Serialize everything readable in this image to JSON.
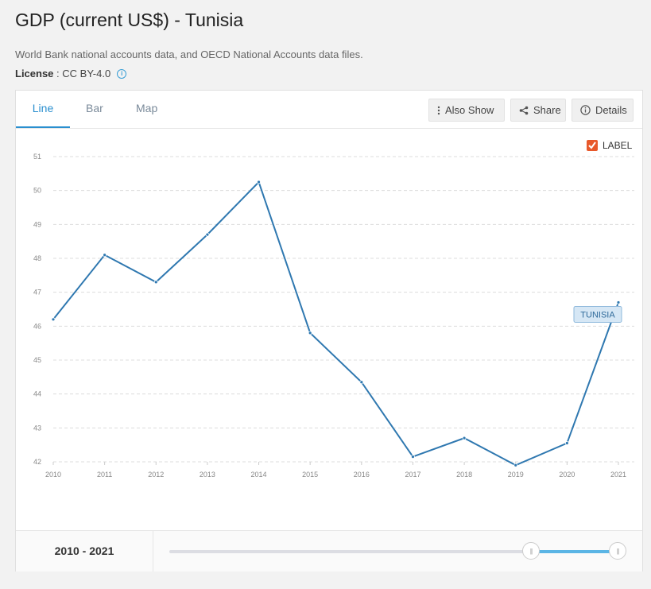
{
  "page": {
    "title": "GDP (current US$) - Tunisia",
    "source": "World Bank national accounts data, and OECD National Accounts data files.",
    "license_label": "License",
    "license_value": ": CC BY-4.0",
    "info_icon": "info-icon"
  },
  "tabs": [
    {
      "label": "Line",
      "active": true
    },
    {
      "label": "Bar",
      "active": false
    },
    {
      "label": "Map",
      "active": false
    }
  ],
  "toolbar": {
    "also_show": "Also Show",
    "share": "Share",
    "details": "Details"
  },
  "label_toggle": {
    "text": "LABEL",
    "checked": true,
    "color": "#e8592b"
  },
  "range": {
    "label": "2010 - 2021",
    "start_fraction": 0.8,
    "end_fraction": 1.0
  },
  "colors": {
    "line": "#2f78b0",
    "accent": "#2a8fcf",
    "series_label_bg": "#d6e7f5"
  },
  "chart_data": {
    "type": "line",
    "x": [
      2010,
      2011,
      2012,
      2013,
      2014,
      2015,
      2016,
      2017,
      2018,
      2019,
      2020,
      2021
    ],
    "series": [
      {
        "name": "TUNISIA",
        "values": [
          46.2,
          48.1,
          47.3,
          48.7,
          50.25,
          45.8,
          44.35,
          42.15,
          42.7,
          41.9,
          42.55,
          46.7
        ]
      }
    ],
    "yticks": [
      42,
      43,
      44,
      45,
      46,
      47,
      48,
      49,
      50,
      51
    ],
    "ylim": [
      42,
      51
    ],
    "xlim": [
      2010,
      2021
    ],
    "grid": true,
    "gridstyle": "dashed horizontal"
  }
}
